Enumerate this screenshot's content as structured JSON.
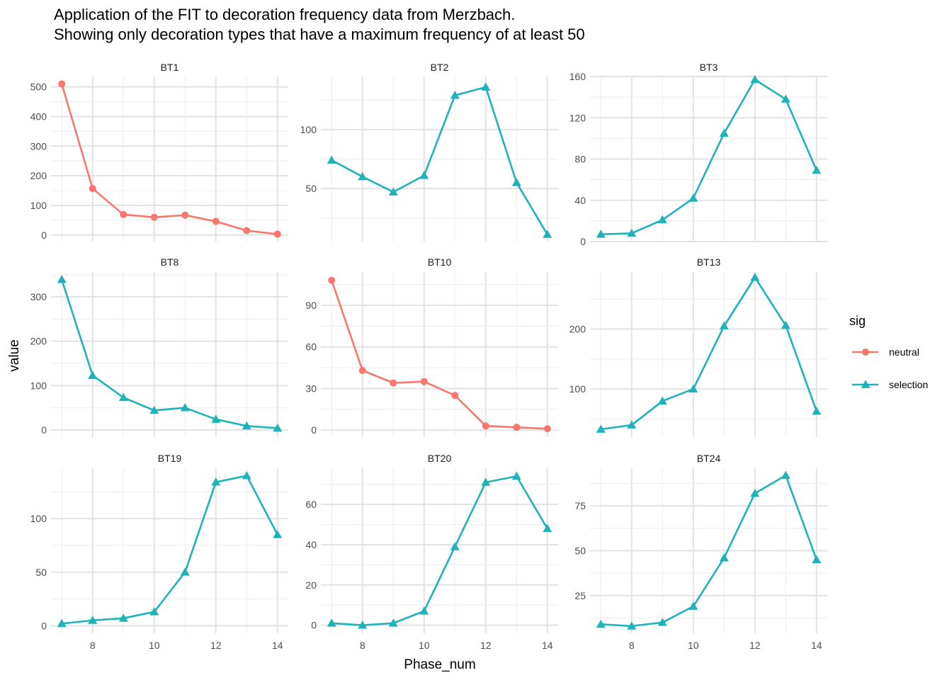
{
  "title": {
    "line1": "Application of the FIT to decoration frequency data from Merzbach.",
    "line2": "Showing only decoration types that have a maximum frequency of at least 50"
  },
  "colors": {
    "neutral": "#F8766D",
    "selection": "#1FB3B8"
  },
  "chart_data": {
    "type": "line",
    "facet_by": "decoration type",
    "xlabel": "Phase_num",
    "ylabel": "value",
    "x": [
      7,
      8,
      9,
      10,
      11,
      12,
      13,
      14
    ],
    "x_ticks": [
      8,
      10,
      12,
      14
    ],
    "xlim": [
      6.65,
      14.35
    ],
    "shared_x": true,
    "free_y": true,
    "grid": true,
    "legend": {
      "title": "sig",
      "placement": "right",
      "entries": [
        {
          "label": "neutral",
          "marker": "circle",
          "color": "#F8766D"
        },
        {
          "label": "selection",
          "marker": "triangle",
          "color": "#1FB3B8"
        }
      ]
    },
    "panels": [
      {
        "name": "BT1",
        "sig": "neutral",
        "ylim": [
          -22,
          535
        ],
        "y_ticks": [
          0,
          100,
          200,
          300,
          400,
          500
        ],
        "values": [
          510,
          157,
          69,
          60,
          67,
          46,
          15,
          3
        ]
      },
      {
        "name": "BT2",
        "sig": "selection",
        "ylim": [
          5,
          145
        ],
        "y_ticks": [
          50,
          100
        ],
        "values": [
          74,
          60,
          47,
          61,
          129,
          136,
          55,
          11
        ]
      },
      {
        "name": "BT3",
        "sig": "selection",
        "ylim": [
          0,
          160
        ],
        "y_ticks": [
          0,
          40,
          80,
          120,
          160
        ],
        "values": [
          7,
          8,
          21,
          42,
          105,
          157,
          138,
          69
        ]
      },
      {
        "name": "BT8",
        "sig": "selection",
        "ylim": [
          -16,
          356
        ],
        "y_ticks": [
          0,
          100,
          200,
          300
        ],
        "values": [
          339,
          123,
          73,
          44,
          50,
          24,
          9,
          4
        ]
      },
      {
        "name": "BT10",
        "sig": "neutral",
        "ylim": [
          -5,
          114
        ],
        "y_ticks": [
          0,
          30,
          60,
          90
        ],
        "values": [
          108,
          43,
          34,
          35,
          25,
          3,
          2,
          1
        ]
      },
      {
        "name": "BT13",
        "sig": "selection",
        "ylim": [
          20,
          295
        ],
        "y_ticks": [
          100,
          200
        ],
        "values": [
          33,
          40,
          80,
          100,
          205,
          286,
          206,
          63
        ]
      },
      {
        "name": "BT19",
        "sig": "selection",
        "ylim": [
          -7,
          147
        ],
        "y_ticks": [
          0,
          50,
          100
        ],
        "values": [
          2,
          5,
          7,
          13,
          50,
          134,
          140,
          85
        ]
      },
      {
        "name": "BT20",
        "sig": "selection",
        "ylim": [
          -4,
          78
        ],
        "y_ticks": [
          0,
          20,
          40,
          60
        ],
        "values": [
          1,
          0,
          1,
          7,
          39,
          71,
          74,
          48
        ]
      },
      {
        "name": "BT24",
        "sig": "selection",
        "ylim": [
          4,
          96
        ],
        "y_ticks": [
          25,
          50,
          75
        ],
        "values": [
          9,
          8,
          10,
          19,
          46,
          82,
          92,
          45
        ]
      }
    ]
  }
}
